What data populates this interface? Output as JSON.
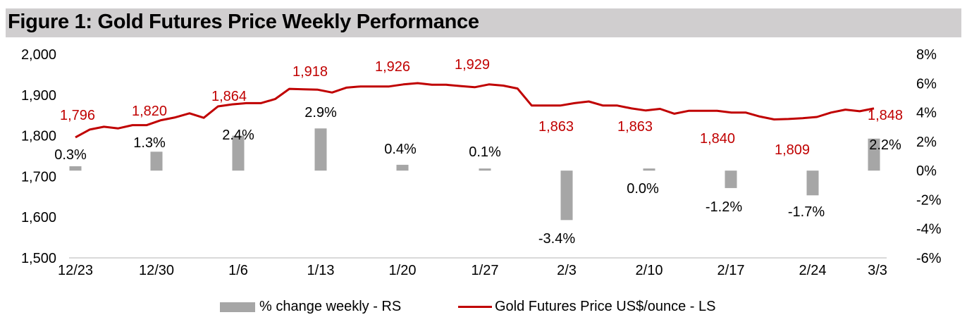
{
  "title": "Figure 1: Gold Futures Price Weekly Performance",
  "chart_data": {
    "type": "bar+line",
    "title": "Figure 1: Gold Futures Price Weekly Performance",
    "xlabel": "",
    "left_axis": {
      "label": "Gold Futures Price US$/ounce",
      "ylim": [
        1500,
        2000
      ],
      "ticks": [
        1500,
        1600,
        1700,
        1800,
        1900,
        2000
      ],
      "tick_labels": [
        "1,500",
        "1,600",
        "1,700",
        "1,800",
        "1,900",
        "2,000"
      ]
    },
    "right_axis": {
      "label": "% change weekly",
      "ylim": [
        -6,
        8
      ],
      "ticks": [
        -6,
        -4,
        -2,
        0,
        2,
        4,
        6,
        8
      ],
      "tick_labels": [
        "-6%",
        "-4%",
        "-2%",
        "0%",
        "2%",
        "4%",
        "6%",
        "8%"
      ]
    },
    "categories": [
      "12/23",
      "12/30",
      "1/6",
      "1/13",
      "1/20",
      "1/27",
      "2/3",
      "2/10",
      "2/17",
      "2/24",
      "3/3"
    ],
    "series": [
      {
        "name": "% change weekly - RS",
        "type": "bar",
        "axis": "right",
        "color": "#a6a6a6",
        "values": [
          0.3,
          1.3,
          2.4,
          2.9,
          0.4,
          0.1,
          -3.4,
          0.0,
          -1.2,
          -1.7,
          2.2
        ],
        "labels": [
          "0.3%",
          "1.3%",
          "2.4%",
          "2.9%",
          "0.4%",
          "0.1%",
          "-3.4%",
          "0.0%",
          "-1.2%",
          "-1.7%",
          "2.2%"
        ]
      },
      {
        "name": "Gold Futures Price US$/ounce - LS",
        "type": "line",
        "axis": "left",
        "color": "#c00000",
        "daily_values": [
          1796,
          1815,
          1822,
          1818,
          1826,
          1826,
          1838,
          1845,
          1855,
          1844,
          1872,
          1877,
          1880,
          1880,
          1890,
          1915,
          1914,
          1913,
          1906,
          1918,
          1921,
          1921,
          1921,
          1926,
          1929,
          1925,
          1925,
          1922,
          1919,
          1926,
          1923,
          1916,
          1874,
          1874,
          1874,
          1880,
          1884,
          1874,
          1874,
          1867,
          1862,
          1866,
          1854,
          1861,
          1861,
          1861,
          1857,
          1857,
          1847,
          1840,
          1841,
          1843,
          1846,
          1857,
          1864,
          1860,
          1867
        ],
        "weekly_labels": [
          {
            "category": "12/23",
            "value": 1796,
            "label": "1,796"
          },
          {
            "category": "12/30",
            "value": 1820,
            "label": "1,820"
          },
          {
            "category": "1/6",
            "value": 1864,
            "label": "1,864"
          },
          {
            "category": "1/13",
            "value": 1918,
            "label": "1,918"
          },
          {
            "category": "1/20",
            "value": 1926,
            "label": "1,926"
          },
          {
            "category": "1/27",
            "value": 1929,
            "label": "1,929"
          },
          {
            "category": "2/3",
            "value": 1863,
            "label": "1,863"
          },
          {
            "category": "2/10",
            "value": 1863,
            "label": "1,863"
          },
          {
            "category": "2/17",
            "value": 1840,
            "label": "1,840"
          },
          {
            "category": "2/24",
            "value": 1809,
            "label": "1,809"
          },
          {
            "category": "3/3",
            "value": 1848,
            "label": "1,848"
          }
        ]
      }
    ],
    "legend": {
      "position": "bottom",
      "entries": [
        "% change weekly - RS",
        "Gold Futures Price US$/ounce - LS"
      ]
    },
    "grid": false
  }
}
